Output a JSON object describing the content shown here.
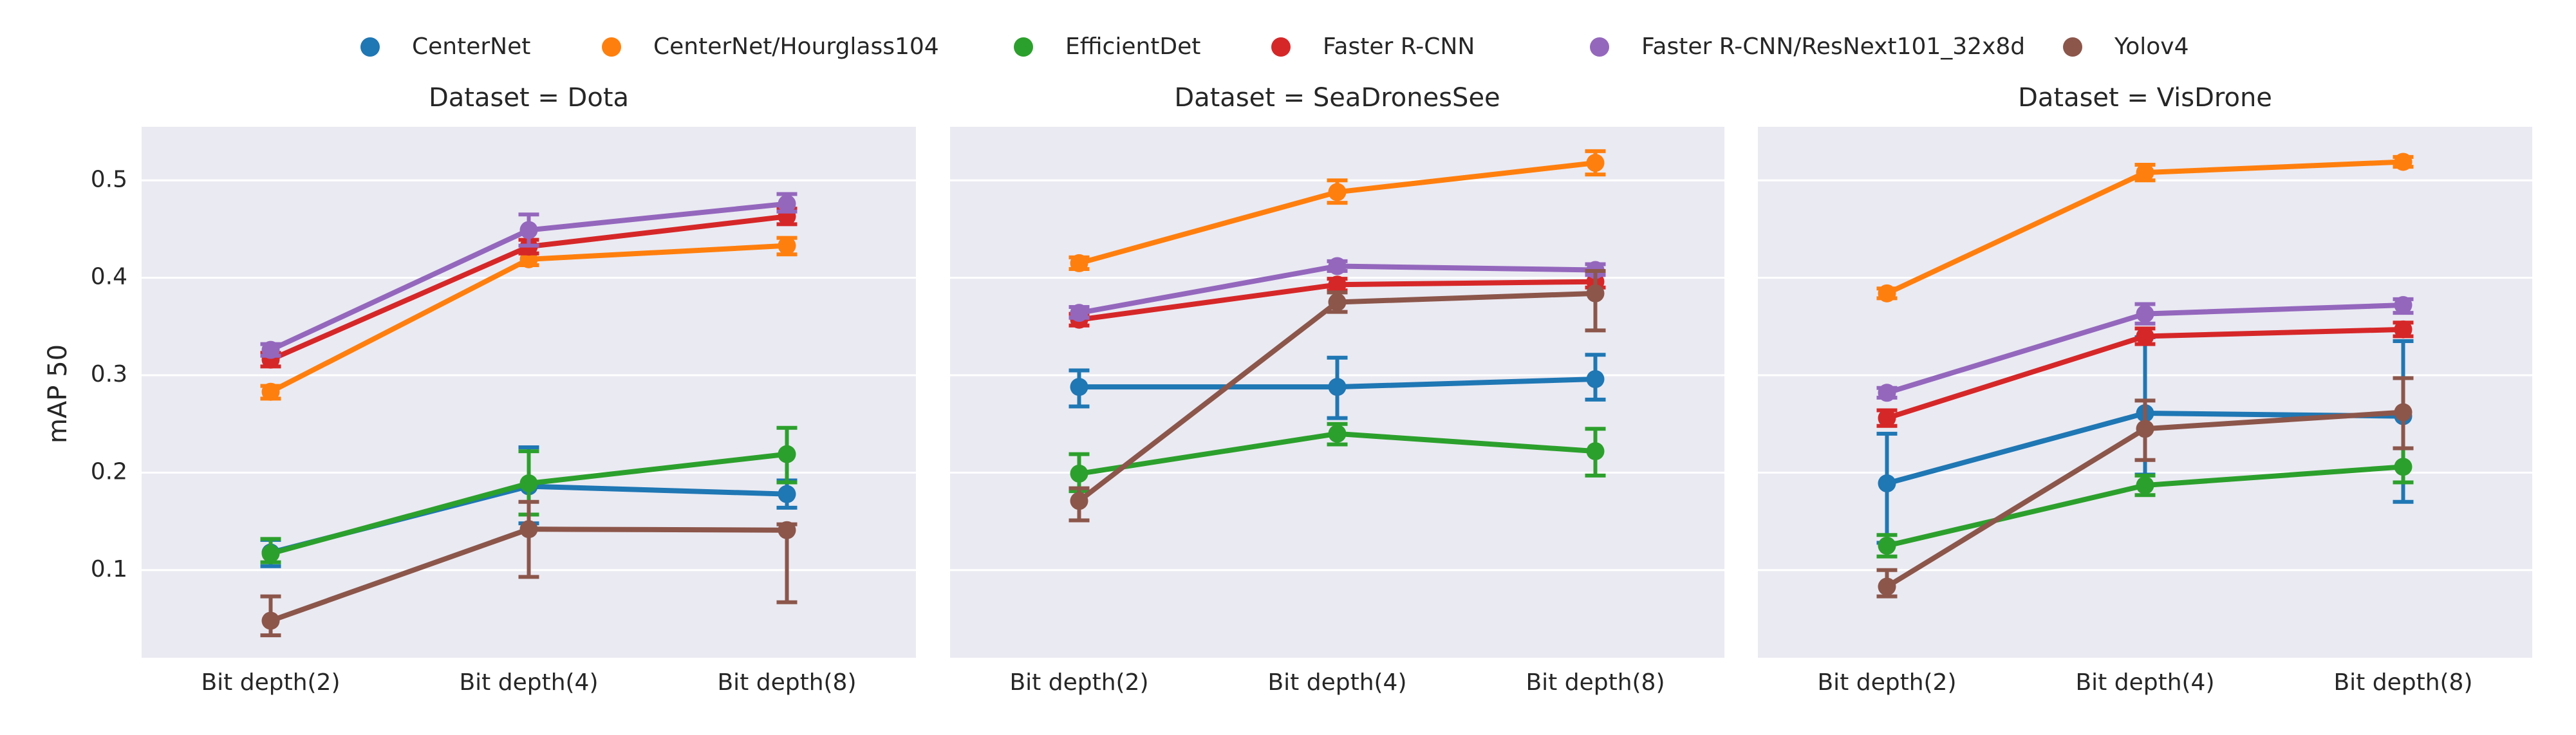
{
  "chart_data": {
    "type": "line",
    "title": "",
    "ylabel": "mAP 50",
    "xlabel": "",
    "ylim": [
      0.01,
      0.555
    ],
    "yticks": [
      0.1,
      0.2,
      0.3,
      0.4,
      0.5
    ],
    "ytick_labels": [
      "0.1",
      "0.2",
      "0.3",
      "0.4",
      "0.5"
    ],
    "categories": [
      "Bit depth(2)",
      "Bit depth(4)",
      "Bit depth(8)"
    ],
    "legend_position": "top-center",
    "grid": true,
    "series_styles": [
      {
        "name": "CenterNet",
        "color": "#1f77b4"
      },
      {
        "name": "CenterNet/Hourglass104",
        "color": "#ff7f0e"
      },
      {
        "name": "EfficientDet",
        "color": "#2ca02c"
      },
      {
        "name": "Faster R-CNN",
        "color": "#d62728"
      },
      {
        "name": "Faster R-CNN/ResNext101_32x8d",
        "color": "#9467bd"
      },
      {
        "name": "Yolov4",
        "color": "#8c564b"
      }
    ],
    "facets": [
      {
        "title": "Dataset = Dota",
        "series": [
          {
            "name": "CenterNet",
            "values": [
              0.118,
              0.186,
              0.178
            ],
            "err_low": [
              0.104,
              0.148,
              0.164
            ],
            "err_high": [
              0.131,
              0.226,
              0.192
            ]
          },
          {
            "name": "CenterNet/Hourglass104",
            "values": [
              0.283,
              0.419,
              0.433
            ],
            "err_low": [
              0.276,
              0.413,
              0.424
            ],
            "err_high": [
              0.289,
              0.425,
              0.441
            ]
          },
          {
            "name": "EfficientDet",
            "values": [
              0.117,
              0.189,
              0.219
            ],
            "err_low": [
              0.108,
              0.157,
              0.19
            ],
            "err_high": [
              0.132,
              0.222,
              0.246
            ]
          },
          {
            "name": "Faster R-CNN",
            "values": [
              0.316,
              0.432,
              0.463
            ],
            "err_low": [
              0.309,
              0.425,
              0.455
            ],
            "err_high": [
              0.323,
              0.439,
              0.471
            ]
          },
          {
            "name": "Faster R-CNN/ResNext101_32x8d",
            "values": [
              0.326,
              0.449,
              0.476
            ],
            "err_low": [
              0.32,
              0.433,
              0.468
            ],
            "err_high": [
              0.332,
              0.465,
              0.486
            ]
          },
          {
            "name": "Yolov4",
            "values": [
              0.048,
              0.142,
              0.141
            ],
            "err_low": [
              0.033,
              0.093,
              0.067
            ],
            "err_high": [
              0.073,
              0.17,
              0.147
            ]
          }
        ]
      },
      {
        "title": "Dataset = SeaDronesSee",
        "series": [
          {
            "name": "CenterNet",
            "values": [
              0.288,
              0.288,
              0.296
            ],
            "err_low": [
              0.268,
              0.256,
              0.275
            ],
            "err_high": [
              0.305,
              0.318,
              0.321
            ]
          },
          {
            "name": "CenterNet/Hourglass104",
            "values": [
              0.415,
              0.488,
              0.518
            ],
            "err_low": [
              0.409,
              0.477,
              0.506
            ],
            "err_high": [
              0.421,
              0.5,
              0.53
            ]
          },
          {
            "name": "EfficientDet",
            "values": [
              0.199,
              0.24,
              0.222
            ],
            "err_low": [
              0.181,
              0.229,
              0.197
            ],
            "err_high": [
              0.219,
              0.25,
              0.245
            ]
          },
          {
            "name": "Faster R-CNN",
            "values": [
              0.357,
              0.393,
              0.396
            ],
            "err_low": [
              0.351,
              0.387,
              0.39
            ],
            "err_high": [
              0.363,
              0.399,
              0.403
            ]
          },
          {
            "name": "Faster R-CNN/ResNext101_32x8d",
            "values": [
              0.364,
              0.412,
              0.408
            ],
            "err_low": [
              0.359,
              0.407,
              0.403
            ],
            "err_high": [
              0.37,
              0.417,
              0.414
            ]
          },
          {
            "name": "Yolov4",
            "values": [
              0.171,
              0.375,
              0.384
            ],
            "err_low": [
              0.151,
              0.365,
              0.346
            ],
            "err_high": [
              0.184,
              0.385,
              0.407
            ]
          }
        ]
      },
      {
        "title": "Dataset = VisDrone",
        "series": [
          {
            "name": "CenterNet",
            "values": [
              0.189,
              0.261,
              0.258
            ],
            "err_low": [
              0.128,
              0.198,
              0.17
            ],
            "err_high": [
              0.24,
              0.339,
              0.335
            ]
          },
          {
            "name": "CenterNet/Hourglass104",
            "values": [
              0.384,
              0.508,
              0.519
            ],
            "err_low": [
              0.379,
              0.5,
              0.514
            ],
            "err_high": [
              0.389,
              0.516,
              0.524
            ]
          },
          {
            "name": "EfficientDet",
            "values": [
              0.125,
              0.187,
              0.206
            ],
            "err_low": [
              0.114,
              0.177,
              0.19
            ],
            "err_high": [
              0.136,
              0.197,
              0.225
            ]
          },
          {
            "name": "Faster R-CNN",
            "values": [
              0.256,
              0.34,
              0.347
            ],
            "err_low": [
              0.248,
              0.332,
              0.34
            ],
            "err_high": [
              0.264,
              0.348,
              0.354
            ]
          },
          {
            "name": "Faster R-CNN/ResNext101_32x8d",
            "values": [
              0.282,
              0.363,
              0.372
            ],
            "err_low": [
              0.277,
              0.353,
              0.364
            ],
            "err_high": [
              0.287,
              0.373,
              0.378
            ]
          },
          {
            "name": "Yolov4",
            "values": [
              0.083,
              0.245,
              0.262
            ],
            "err_low": [
              0.073,
              0.213,
              0.225
            ],
            "err_high": [
              0.1,
              0.274,
              0.297
            ]
          }
        ]
      }
    ]
  }
}
